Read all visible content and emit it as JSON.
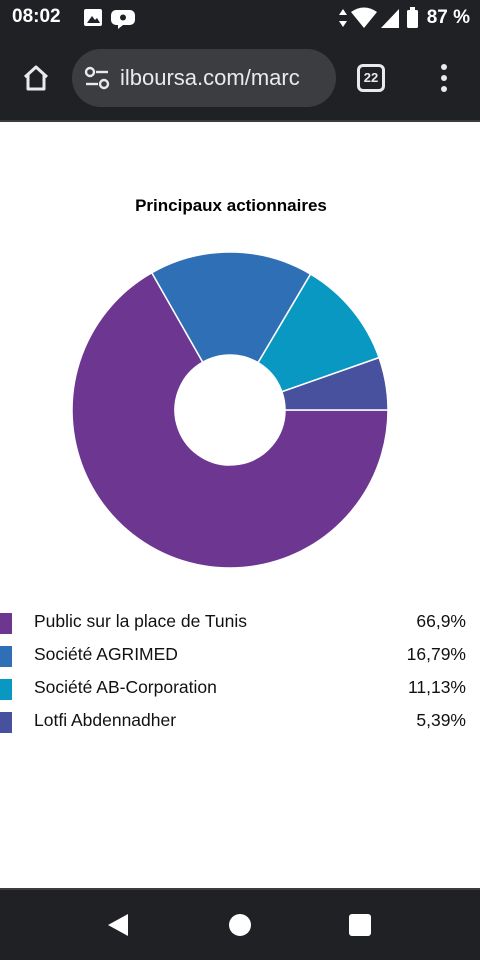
{
  "status_bar": {
    "time": "08:02",
    "battery": "87 %"
  },
  "browser": {
    "url": "ilboursa.com/marc",
    "tab_count": "22"
  },
  "chart_data": {
    "type": "pie",
    "donut": true,
    "title": "Principaux actionnaires",
    "categories": [
      "Public sur la place de Tunis",
      "Société AGRIMED",
      "Société AB-Corporation",
      "Lotfi Abdennadher"
    ],
    "values": [
      66.9,
      16.79,
      11.13,
      5.39
    ],
    "value_labels": [
      "66,9%",
      "16,79%",
      "11,13%",
      "5,39%"
    ],
    "colors": [
      "#6d3791",
      "#2f6fb5",
      "#0898c2",
      "#47519d"
    ],
    "legend_position": "bottom"
  },
  "colors": {
    "system_bar": "#202124",
    "url_pill": "#3c3d40",
    "page_background": "#ffffff"
  },
  "icons": {
    "status_left": [
      "image-icon",
      "chat-bubble-icon"
    ],
    "status_right": [
      "data-arrows-icon",
      "wifi-icon",
      "cell-signal-icon",
      "battery-icon"
    ],
    "toolbar": [
      "home-icon",
      "site-settings-icon",
      "tabs-icon",
      "more-vert-icon"
    ],
    "nav": [
      "back-icon",
      "home-circle-icon",
      "recents-square-icon"
    ]
  }
}
